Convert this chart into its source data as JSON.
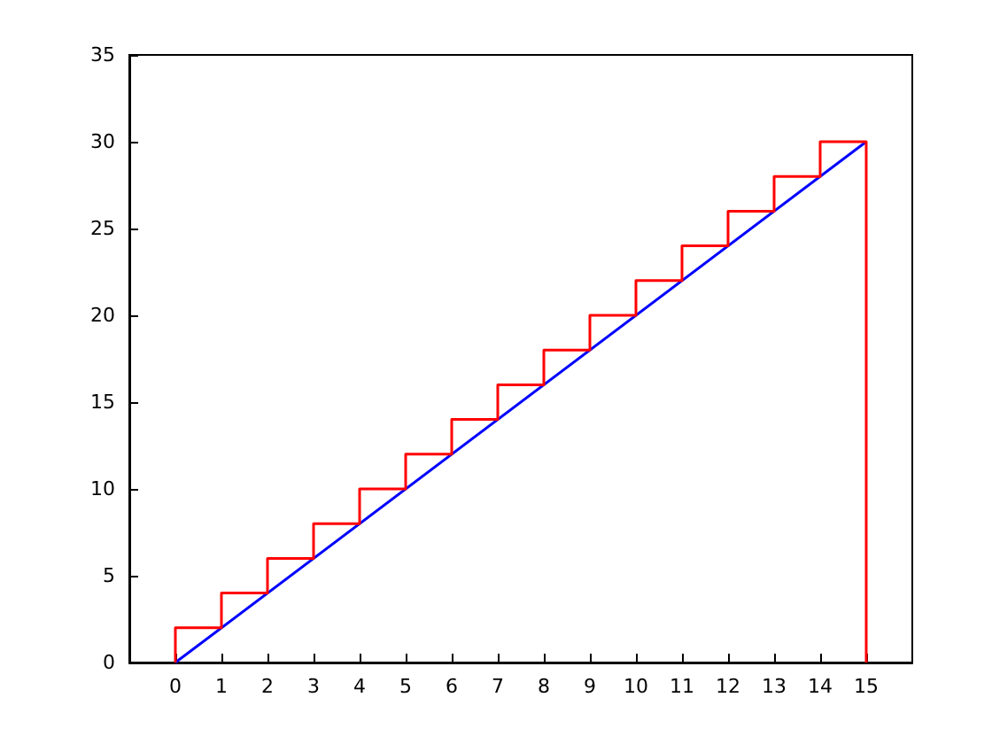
{
  "chart_data": {
    "type": "line",
    "marker": "none",
    "xlim": [
      -1,
      16
    ],
    "xticks": [
      0,
      1,
      2,
      3,
      4,
      5,
      6,
      7,
      8,
      9,
      10,
      11,
      12,
      13,
      14,
      15
    ],
    "ylim": [
      0,
      35
    ],
    "yticks": [
      0,
      5,
      10,
      15,
      20,
      25,
      30,
      35
    ],
    "series": [
      {
        "color": "#0000ff",
        "x": [
          0,
          15
        ],
        "values": [
          0,
          30
        ]
      },
      {
        "type": "step",
        "color": "#ff0000",
        "x": [
          0,
          1,
          2,
          3,
          4,
          5,
          6,
          7,
          8,
          9,
          10,
          11,
          12,
          13,
          14,
          15,
          15
        ],
        "values": [
          0,
          2,
          4,
          6,
          8,
          10,
          12,
          14,
          16,
          18,
          20,
          22,
          24,
          26,
          28,
          30,
          0
        ]
      }
    ]
  }
}
